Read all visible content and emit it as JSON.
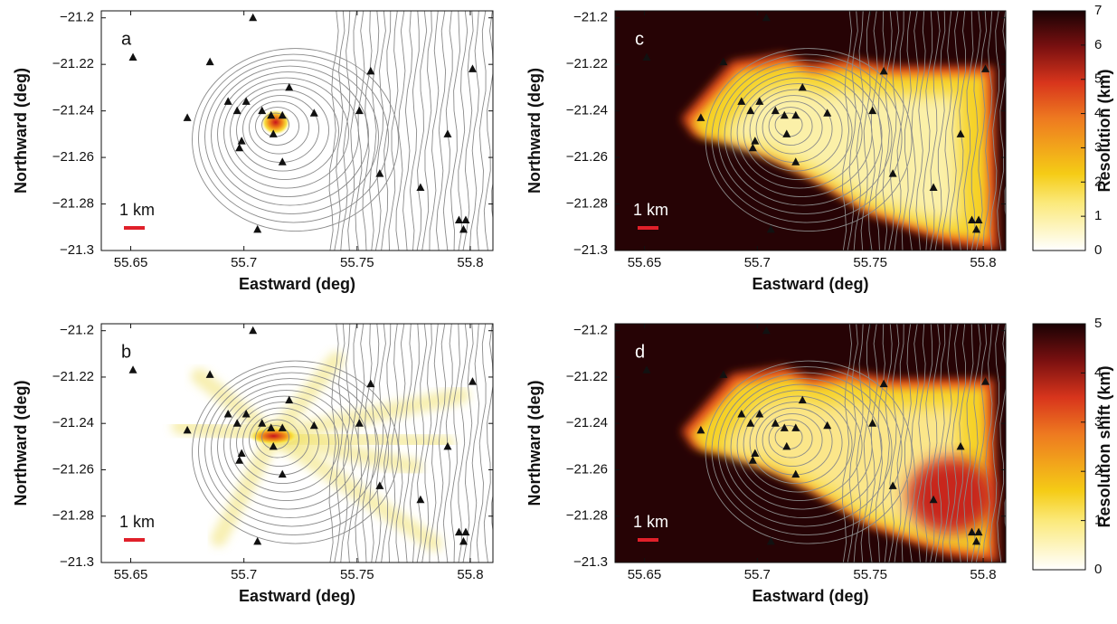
{
  "chart_data": [
    {
      "type": "map",
      "panel": "a",
      "xlabel": "Eastward (deg)",
      "ylabel": "Northward (deg)",
      "scale_label": "1 km",
      "xlim": [
        55.637,
        55.81
      ],
      "ylim": [
        -21.3,
        -21.197
      ],
      "xticks": [
        55.65,
        55.7,
        55.75,
        55.8
      ],
      "yticks": [
        {
          "value": -21.3,
          "label": "−21.3"
        },
        {
          "value": -21.28,
          "label": "−21.28"
        },
        {
          "value": -21.26,
          "label": "−21.26"
        },
        {
          "value": -21.24,
          "label": "−21.24"
        },
        {
          "value": -21.22,
          "label": "−21.22"
        },
        {
          "value": -21.2,
          "label": "−21.2"
        }
      ],
      "stations": {
        "x": [
          55.651,
          55.685,
          55.704,
          55.693,
          55.701,
          55.697,
          55.675,
          55.708,
          55.712,
          55.717,
          55.72,
          55.731,
          55.699,
          55.698,
          55.713,
          55.717,
          55.756,
          55.801,
          55.751,
          55.79,
          55.76,
          55.778,
          55.706,
          55.795,
          55.798,
          55.797
        ],
        "y": [
          -21.217,
          -21.219,
          -21.2,
          -21.236,
          -21.236,
          -21.24,
          -21.243,
          -21.24,
          -21.242,
          -21.242,
          -21.23,
          -21.241,
          -21.253,
          -21.256,
          -21.25,
          -21.262,
          -21.223,
          -21.222,
          -21.24,
          -21.25,
          -21.267,
          -21.273,
          -21.291,
          -21.287,
          -21.287,
          -21.291
        ]
      }
    },
    {
      "type": "map",
      "panel": "b",
      "xlabel": "Eastward (deg)",
      "ylabel": "Northward (deg)",
      "scale_label": "1 km",
      "xlim": [
        55.637,
        55.81
      ],
      "ylim": [
        -21.3,
        -21.197
      ],
      "xticks": [
        55.65,
        55.7,
        55.75,
        55.8
      ],
      "yticks": [
        {
          "value": -21.3,
          "label": "−21.3"
        },
        {
          "value": -21.28,
          "label": "−21.28"
        },
        {
          "value": -21.26,
          "label": "−21.26"
        },
        {
          "value": -21.24,
          "label": "−21.24"
        },
        {
          "value": -21.22,
          "label": "−21.22"
        },
        {
          "value": -21.2,
          "label": "−21.2"
        }
      ],
      "stations": {
        "x": [
          55.651,
          55.685,
          55.704,
          55.693,
          55.701,
          55.697,
          55.675,
          55.708,
          55.712,
          55.717,
          55.72,
          55.731,
          55.699,
          55.698,
          55.713,
          55.717,
          55.756,
          55.801,
          55.751,
          55.79,
          55.76,
          55.778,
          55.706,
          55.795,
          55.798,
          55.797
        ],
        "y": [
          -21.217,
          -21.219,
          -21.2,
          -21.236,
          -21.236,
          -21.24,
          -21.243,
          -21.24,
          -21.242,
          -21.242,
          -21.23,
          -21.241,
          -21.253,
          -21.256,
          -21.25,
          -21.262,
          -21.223,
          -21.222,
          -21.24,
          -21.25,
          -21.267,
          -21.273,
          -21.291,
          -21.287,
          -21.287,
          -21.291
        ]
      }
    },
    {
      "type": "map",
      "panel": "c",
      "xlabel": "Eastward (deg)",
      "ylabel": "Northward (deg)",
      "scale_label": "1 km",
      "xlim": [
        55.637,
        55.81
      ],
      "ylim": [
        -21.3,
        -21.197
      ],
      "xticks": [
        55.65,
        55.7,
        55.75,
        55.8
      ],
      "yticks": [
        {
          "value": -21.3,
          "label": "−21.3"
        },
        {
          "value": -21.28,
          "label": "−21.28"
        },
        {
          "value": -21.26,
          "label": "−21.26"
        },
        {
          "value": -21.24,
          "label": "−21.24"
        },
        {
          "value": -21.22,
          "label": "−21.22"
        },
        {
          "value": -21.2,
          "label": "−21.2"
        }
      ],
      "stations": {
        "x": [
          55.651,
          55.685,
          55.704,
          55.693,
          55.701,
          55.697,
          55.675,
          55.708,
          55.712,
          55.717,
          55.72,
          55.731,
          55.699,
          55.698,
          55.713,
          55.717,
          55.756,
          55.801,
          55.751,
          55.79,
          55.76,
          55.778,
          55.706,
          55.795,
          55.798,
          55.797
        ],
        "y": [
          -21.217,
          -21.219,
          -21.2,
          -21.236,
          -21.236,
          -21.24,
          -21.243,
          -21.24,
          -21.242,
          -21.242,
          -21.23,
          -21.241,
          -21.253,
          -21.256,
          -21.25,
          -21.262,
          -21.223,
          -21.222,
          -21.24,
          -21.25,
          -21.267,
          -21.273,
          -21.291,
          -21.287,
          -21.287,
          -21.291
        ]
      },
      "colorbar": {
        "label": "Resolution (km)",
        "clim": [
          0,
          7
        ],
        "ticks": [
          0,
          1,
          2,
          3,
          4,
          5,
          6,
          7
        ]
      }
    },
    {
      "type": "map",
      "panel": "d",
      "xlabel": "Eastward (deg)",
      "ylabel": "Northward (deg)",
      "scale_label": "1 km",
      "xlim": [
        55.637,
        55.81
      ],
      "ylim": [
        -21.3,
        -21.197
      ],
      "xticks": [
        55.65,
        55.7,
        55.75,
        55.8
      ],
      "yticks": [
        {
          "value": -21.3,
          "label": "−21.3"
        },
        {
          "value": -21.28,
          "label": "−21.28"
        },
        {
          "value": -21.26,
          "label": "−21.26"
        },
        {
          "value": -21.24,
          "label": "−21.24"
        },
        {
          "value": -21.22,
          "label": "−21.22"
        },
        {
          "value": -21.2,
          "label": "−21.2"
        }
      ],
      "stations": {
        "x": [
          55.651,
          55.685,
          55.704,
          55.693,
          55.701,
          55.697,
          55.675,
          55.708,
          55.712,
          55.717,
          55.72,
          55.731,
          55.699,
          55.698,
          55.713,
          55.717,
          55.756,
          55.801,
          55.751,
          55.79,
          55.76,
          55.778,
          55.706,
          55.795,
          55.798,
          55.797
        ],
        "y": [
          -21.217,
          -21.219,
          -21.2,
          -21.236,
          -21.236,
          -21.24,
          -21.243,
          -21.24,
          -21.242,
          -21.242,
          -21.23,
          -21.241,
          -21.253,
          -21.256,
          -21.25,
          -21.262,
          -21.223,
          -21.222,
          -21.24,
          -21.25,
          -21.267,
          -21.273,
          -21.291,
          -21.287,
          -21.287,
          -21.291
        ]
      },
      "colorbar": {
        "label": "Resolution shift (km)",
        "clim": [
          0,
          5
        ],
        "ticks": [
          0,
          1,
          2,
          3,
          4,
          5
        ]
      }
    }
  ]
}
